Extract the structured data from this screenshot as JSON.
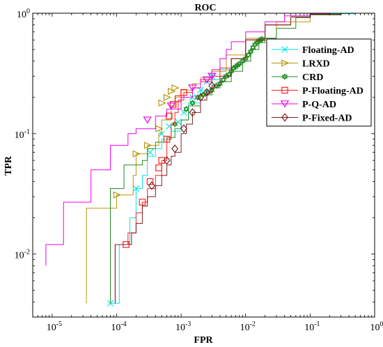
{
  "chart_data": {
    "type": "line",
    "title": "ROC",
    "xlabel": "FPR",
    "ylabel": "TPR",
    "xscale": "log",
    "yscale": "log",
    "xlim": [
      5e-06,
      1
    ],
    "ylim": [
      0.003,
      1
    ],
    "grid": false,
    "legend_position": "top-right",
    "x_ticks": [
      {
        "base": "10",
        "exp": "-5",
        "value": 1e-05
      },
      {
        "base": "10",
        "exp": "-4",
        "value": 0.0001
      },
      {
        "base": "10",
        "exp": "-3",
        "value": 0.001
      },
      {
        "base": "10",
        "exp": "-2",
        "value": 0.01
      },
      {
        "base": "10",
        "exp": "-1",
        "value": 0.1
      },
      {
        "base": "10",
        "exp": "0",
        "value": 1
      }
    ],
    "y_ticks": [
      {
        "base": "10",
        "exp": "-2",
        "value": 0.01
      },
      {
        "base": "10",
        "exp": "-1",
        "value": 0.1
      },
      {
        "base": "10",
        "exp": "0",
        "value": 1
      }
    ],
    "series": [
      {
        "name": "Floating-AD",
        "color": "#00e5ee",
        "marker": "x",
        "points": [
          [
            8e-05,
            0.0039
          ],
          [
            0.00011,
            0.0039
          ],
          [
            0.00011,
            0.012
          ],
          [
            0.00016,
            0.02
          ],
          [
            0.0002,
            0.035
          ],
          [
            0.00025,
            0.045
          ],
          [
            0.0003,
            0.065
          ],
          [
            0.0004,
            0.075
          ],
          [
            0.0005,
            0.09
          ],
          [
            0.0007,
            0.105
          ],
          [
            0.001,
            0.13
          ],
          [
            0.0013,
            0.18
          ],
          [
            0.002,
            0.23
          ],
          [
            0.003,
            0.28
          ],
          [
            0.004,
            0.34
          ],
          [
            0.006,
            0.42
          ],
          [
            0.01,
            0.6
          ],
          [
            0.02,
            0.8
          ],
          [
            0.05,
            0.93
          ],
          [
            0.1,
            0.98
          ],
          [
            0.2,
            0.99
          ],
          [
            0.5,
            1.0
          ]
        ],
        "marker_points": [
          [
            8e-05,
            0.0039
          ],
          [
            0.0002,
            0.035
          ],
          [
            0.00033,
            0.07
          ],
          [
            0.0005,
            0.1
          ],
          [
            0.00065,
            0.115
          ],
          [
            0.0009,
            0.125
          ],
          [
            0.0011,
            0.15
          ],
          [
            0.0015,
            0.2
          ],
          [
            0.002,
            0.23
          ],
          [
            0.0025,
            0.27
          ],
          [
            0.003,
            0.3
          ]
        ]
      },
      {
        "name": "LRXD",
        "color": "#b8960c",
        "marker": "triangle-right",
        "points": [
          [
            3.4e-05,
            0.0039
          ],
          [
            3.4e-05,
            0.024
          ],
          [
            0.0001,
            0.024
          ],
          [
            0.0001,
            0.031
          ],
          [
            0.00018,
            0.045
          ],
          [
            0.0002,
            0.068
          ],
          [
            0.0003,
            0.08
          ],
          [
            0.00045,
            0.1
          ],
          [
            0.0005,
            0.13
          ],
          [
            0.0007,
            0.17
          ],
          [
            0.0008,
            0.2
          ],
          [
            0.001,
            0.23
          ],
          [
            0.0015,
            0.26
          ],
          [
            0.002,
            0.29
          ],
          [
            0.003,
            0.33
          ],
          [
            0.005,
            0.45
          ],
          [
            0.01,
            0.62
          ],
          [
            0.03,
            0.85
          ],
          [
            0.1,
            0.97
          ],
          [
            0.3,
            1.0
          ]
        ],
        "marker_points": [
          [
            0.0001,
            0.031
          ],
          [
            0.0002,
            0.068
          ],
          [
            0.0003,
            0.08
          ],
          [
            0.00045,
            0.11
          ],
          [
            0.0005,
            0.18
          ],
          [
            0.0006,
            0.2
          ],
          [
            0.0007,
            0.225
          ],
          [
            0.0008,
            0.24
          ]
        ]
      },
      {
        "name": "CRD",
        "color": "#228b22",
        "marker": "hexagram",
        "points": [
          [
            8e-05,
            0.0039
          ],
          [
            8e-05,
            0.035
          ],
          [
            0.00012,
            0.035
          ],
          [
            0.00013,
            0.055
          ],
          [
            0.00025,
            0.06
          ],
          [
            0.0003,
            0.075
          ],
          [
            0.0004,
            0.085
          ],
          [
            0.0006,
            0.093
          ],
          [
            0.0008,
            0.11
          ],
          [
            0.001,
            0.13
          ],
          [
            0.0013,
            0.17
          ],
          [
            0.002,
            0.21
          ],
          [
            0.003,
            0.24
          ],
          [
            0.004,
            0.27
          ],
          [
            0.006,
            0.33
          ],
          [
            0.009,
            0.4
          ],
          [
            0.012,
            0.5
          ],
          [
            0.016,
            0.57
          ],
          [
            0.02,
            0.62
          ],
          [
            0.03,
            0.75
          ],
          [
            0.06,
            0.92
          ],
          [
            0.1,
            0.97
          ],
          [
            0.3,
            1.0
          ]
        ],
        "marker_points": [
          [
            0.0008,
            0.12
          ],
          [
            0.0012,
            0.16
          ],
          [
            0.0015,
            0.18
          ],
          [
            0.0018,
            0.2
          ],
          [
            0.0022,
            0.21
          ],
          [
            0.0026,
            0.22
          ],
          [
            0.003,
            0.23
          ],
          [
            0.0035,
            0.25
          ],
          [
            0.004,
            0.26
          ],
          [
            0.0045,
            0.28
          ],
          [
            0.005,
            0.3
          ],
          [
            0.0055,
            0.31
          ],
          [
            0.006,
            0.33
          ],
          [
            0.0065,
            0.35
          ],
          [
            0.007,
            0.36
          ],
          [
            0.0075,
            0.37
          ],
          [
            0.008,
            0.38
          ],
          [
            0.009,
            0.4
          ],
          [
            0.01,
            0.42
          ],
          [
            0.011,
            0.45
          ],
          [
            0.012,
            0.48
          ],
          [
            0.013,
            0.52
          ],
          [
            0.014,
            0.55
          ],
          [
            0.015,
            0.57
          ],
          [
            0.016,
            0.59
          ],
          [
            0.017,
            0.6
          ],
          [
            0.018,
            0.61
          ]
        ]
      },
      {
        "name": "P-Floating-AD",
        "color": "#ff2020",
        "marker": "square",
        "points": [
          [
            9.5e-05,
            0.0039
          ],
          [
            9.5e-05,
            0.012
          ],
          [
            0.00014,
            0.012
          ],
          [
            0.00015,
            0.015
          ],
          [
            0.0002,
            0.022
          ],
          [
            0.00025,
            0.027
          ],
          [
            0.0003,
            0.035
          ],
          [
            0.0004,
            0.045
          ],
          [
            0.0005,
            0.06
          ],
          [
            0.0006,
            0.09
          ],
          [
            0.0007,
            0.12
          ],
          [
            0.0008,
            0.15
          ],
          [
            0.0009,
            0.19
          ],
          [
            0.0011,
            0.22
          ],
          [
            0.0015,
            0.24
          ],
          [
            0.002,
            0.27
          ],
          [
            0.003,
            0.3
          ],
          [
            0.004,
            0.35
          ],
          [
            0.006,
            0.42
          ],
          [
            0.01,
            0.6
          ],
          [
            0.02,
            0.8
          ],
          [
            0.05,
            0.93
          ],
          [
            0.1,
            0.98
          ],
          [
            0.3,
            1.0
          ]
        ],
        "marker_points": [
          [
            0.00014,
            0.012
          ],
          [
            0.00025,
            0.027
          ],
          [
            0.00033,
            0.04
          ],
          [
            0.00045,
            0.052
          ],
          [
            0.0005,
            0.06
          ],
          [
            0.0006,
            0.09
          ],
          [
            0.00065,
            0.14
          ],
          [
            0.00075,
            0.175
          ],
          [
            0.0009,
            0.195
          ],
          [
            0.0011,
            0.22
          ]
        ]
      },
      {
        "name": "P-Q-AD",
        "color": "#ee00ee",
        "marker": "triangle-down",
        "points": [
          [
            8e-06,
            0.008
          ],
          [
            8e-06,
            0.012
          ],
          [
            1.5e-05,
            0.012
          ],
          [
            1.5e-05,
            0.027
          ],
          [
            4e-05,
            0.027
          ],
          [
            4e-05,
            0.05
          ],
          [
            8e-05,
            0.05
          ],
          [
            8e-05,
            0.08
          ],
          [
            0.00012,
            0.08
          ],
          [
            0.00015,
            0.1
          ],
          [
            0.0002,
            0.11
          ],
          [
            0.0004,
            0.14
          ],
          [
            0.0006,
            0.16
          ],
          [
            0.001,
            0.2
          ],
          [
            0.0015,
            0.24
          ],
          [
            0.002,
            0.28
          ],
          [
            0.003,
            0.34
          ],
          [
            0.004,
            0.42
          ],
          [
            0.005,
            0.5
          ],
          [
            0.006,
            0.58
          ],
          [
            0.01,
            0.7
          ],
          [
            0.02,
            0.85
          ],
          [
            0.04,
            0.95
          ],
          [
            0.1,
            0.99
          ],
          [
            0.2,
            1.0
          ]
        ],
        "marker_points": [
          [
            0.0003,
            0.13
          ],
          [
            0.0007,
            0.17
          ],
          [
            0.0015,
            0.24
          ],
          [
            0.0025,
            0.28
          ],
          [
            0.003,
            0.3
          ]
        ]
      },
      {
        "name": "P-Fixed-AD",
        "color": "#7b2020",
        "marker": "diamond",
        "points": [
          [
            9.5e-05,
            0.0039
          ],
          [
            9.5e-05,
            0.012
          ],
          [
            0.00014,
            0.012
          ],
          [
            0.00017,
            0.015
          ],
          [
            0.0002,
            0.018
          ],
          [
            0.00025,
            0.025
          ],
          [
            0.0003,
            0.03
          ],
          [
            0.0004,
            0.037
          ],
          [
            0.0005,
            0.045
          ],
          [
            0.0006,
            0.055
          ],
          [
            0.0007,
            0.065
          ],
          [
            0.0008,
            0.07
          ],
          [
            0.001,
            0.1
          ],
          [
            0.0012,
            0.12
          ],
          [
            0.0015,
            0.15
          ],
          [
            0.002,
            0.19
          ],
          [
            0.0025,
            0.22
          ],
          [
            0.003,
            0.25
          ],
          [
            0.004,
            0.3
          ],
          [
            0.006,
            0.42
          ],
          [
            0.01,
            0.6
          ],
          [
            0.02,
            0.8
          ],
          [
            0.05,
            0.93
          ],
          [
            0.1,
            0.98
          ],
          [
            0.3,
            1.0
          ]
        ],
        "marker_points": [
          [
            0.00035,
            0.037
          ],
          [
            0.0006,
            0.06
          ],
          [
            0.0008,
            0.075
          ],
          [
            0.0011,
            0.11
          ],
          [
            0.0015,
            0.15
          ],
          [
            0.002,
            0.2
          ],
          [
            0.0025,
            0.22
          ],
          [
            0.003,
            0.25
          ]
        ]
      }
    ]
  }
}
